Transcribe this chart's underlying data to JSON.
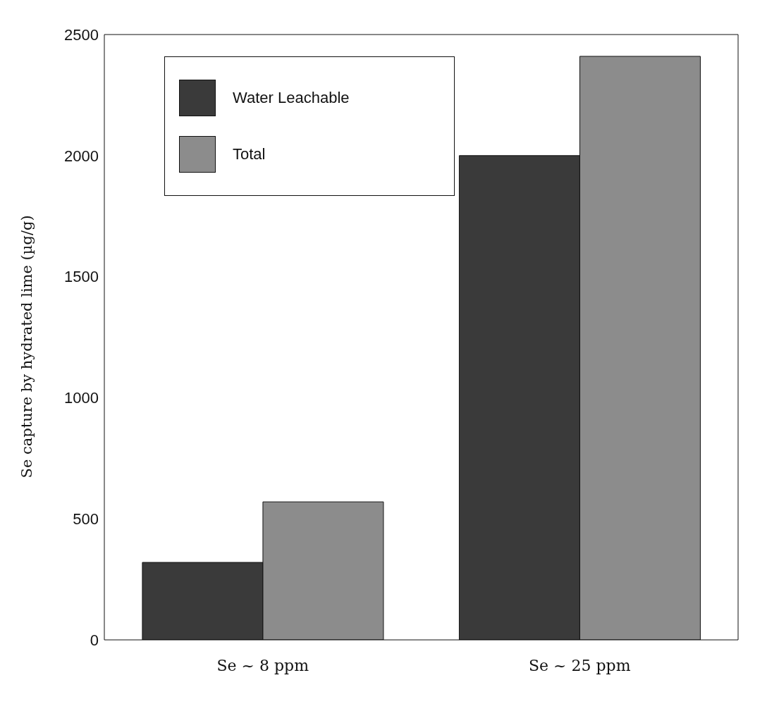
{
  "chart_data": {
    "type": "bar",
    "ylabel": "Se capture by hydrated lime (µg/g)",
    "categories": [
      "Se ~  8 ppm",
      "Se ~ 25 ppm"
    ],
    "series": [
      {
        "name": "Water Leachable",
        "color": "#3a3a3a",
        "values": [
          320,
          2000
        ]
      },
      {
        "name": "Total",
        "color": "#8c8c8c",
        "values": [
          570,
          2410
        ]
      }
    ],
    "ylim": [
      0,
      2500
    ],
    "yticks": [
      0,
      500,
      1000,
      1500,
      2000,
      2500
    ],
    "grid": false,
    "legend": "top left"
  }
}
